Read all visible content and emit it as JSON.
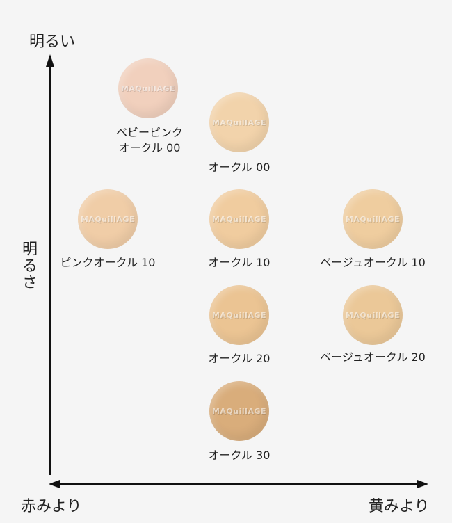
{
  "axes": {
    "top": "明るい",
    "side": "明るさ",
    "left": "赤みより",
    "right": "黄みより"
  },
  "brand_mark": "MAQuillAGE",
  "shades": [
    {
      "id": "baby-pink-ochre-00",
      "line1": "ベビーピンク",
      "line2": "オークル 00",
      "color": "#f1d0bd"
    },
    {
      "id": "ochre-00",
      "line1": "オークル 00",
      "line2": "",
      "color": "#f2d3ab"
    },
    {
      "id": "pink-ochre-10",
      "line1": "ピンクオークル 10",
      "line2": "",
      "color": "#f0cda7"
    },
    {
      "id": "ochre-10",
      "line1": "オークル 10",
      "line2": "",
      "color": "#f0cc9f"
    },
    {
      "id": "beige-ochre-10",
      "line1": "ベージュオークル 10",
      "line2": "",
      "color": "#efcd9f"
    },
    {
      "id": "ochre-20",
      "line1": "オークル 20",
      "line2": "",
      "color": "#ebc493"
    },
    {
      "id": "beige-ochre-20",
      "line1": "ベージュオークル 20",
      "line2": "",
      "color": "#ebc898"
    },
    {
      "id": "ochre-30",
      "line1": "オークル 30",
      "line2": "",
      "color": "#d9ad7b"
    }
  ]
}
